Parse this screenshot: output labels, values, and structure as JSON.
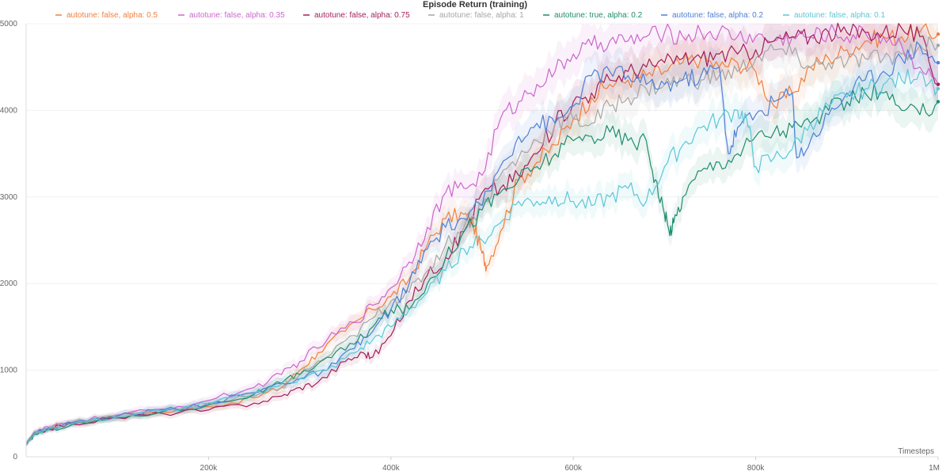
{
  "chart_data": {
    "type": "line",
    "title": "Episode Return (training)",
    "xlabel": "Timesteps",
    "ylabel": "",
    "xlim": [
      0,
      1000000
    ],
    "ylim": [
      0,
      5000
    ],
    "x_ticks": [
      {
        "value": 200000,
        "label": "200k"
      },
      {
        "value": 400000,
        "label": "400k"
      },
      {
        "value": 600000,
        "label": "600k"
      },
      {
        "value": 800000,
        "label": "800k"
      },
      {
        "value": 1000000,
        "label": "1M"
      }
    ],
    "y_ticks": [
      {
        "value": 0,
        "label": "0"
      },
      {
        "value": 1000,
        "label": "1000"
      },
      {
        "value": 2000,
        "label": "2000"
      },
      {
        "value": 3000,
        "label": "3000"
      },
      {
        "value": 4000,
        "label": "4000"
      },
      {
        "value": 5000,
        "label": "5000"
      }
    ],
    "grid": true,
    "legend_position": "top",
    "series": [
      {
        "name": "autotune: false, alpha: 0.5",
        "color": "#f07f3c",
        "x": [
          0,
          10000,
          25000,
          50000,
          100000,
          150000,
          200000,
          250000,
          280000,
          300000,
          320000,
          350000,
          380000,
          400000,
          420000,
          440000,
          460000,
          480000,
          490000,
          500000,
          505000,
          520000,
          540000,
          560000,
          580000,
          600000,
          620000,
          640000,
          660000,
          680000,
          700000,
          720000,
          740000,
          760000,
          780000,
          800000,
          820000,
          840000,
          860000,
          880000,
          900000,
          920000,
          940000,
          960000,
          980000,
          1000000
        ],
        "y": [
          150,
          280,
          330,
          390,
          460,
          520,
          580,
          680,
          800,
          1000,
          1200,
          1450,
          1700,
          1850,
          2050,
          2450,
          2750,
          2800,
          2700,
          2350,
          2200,
          2600,
          3200,
          3400,
          3600,
          3900,
          4150,
          4300,
          4350,
          4400,
          4450,
          4550,
          4600,
          4500,
          4550,
          4450,
          4050,
          4200,
          4500,
          4600,
          4700,
          4800,
          4850,
          4850,
          4900,
          4880
        ]
      },
      {
        "name": "autotune: false, alpha: 0.35",
        "color": "#cc66cc",
        "x": [
          0,
          10000,
          25000,
          50000,
          100000,
          150000,
          200000,
          250000,
          280000,
          300000,
          330000,
          360000,
          380000,
          400000,
          420000,
          440000,
          460000,
          480000,
          500000,
          520000,
          540000,
          560000,
          580000,
          600000,
          620000,
          640000,
          660000,
          680000,
          700000,
          720000,
          740000,
          760000,
          780000,
          800000,
          820000,
          840000,
          860000,
          880000,
          900000,
          920000,
          940000,
          960000,
          980000,
          1000000
        ],
        "y": [
          150,
          290,
          340,
          400,
          480,
          550,
          650,
          800,
          950,
          1100,
          1350,
          1550,
          1750,
          1950,
          2250,
          2650,
          3050,
          3100,
          3250,
          3900,
          4100,
          4300,
          4450,
          4650,
          4750,
          4800,
          4800,
          4850,
          4900,
          4850,
          4900,
          4900,
          4850,
          4850,
          4800,
          4850,
          4850,
          4900,
          4850,
          4900,
          4850,
          4750,
          4500,
          4300
        ]
      },
      {
        "name": "autotune: false, alpha: 0.75",
        "color": "#a31f5a",
        "x": [
          0,
          10000,
          25000,
          50000,
          100000,
          150000,
          200000,
          250000,
          280000,
          300000,
          320000,
          350000,
          370000,
          380000,
          400000,
          420000,
          440000,
          460000,
          480000,
          500000,
          520000,
          540000,
          560000,
          580000,
          600000,
          620000,
          640000,
          660000,
          680000,
          700000,
          720000,
          740000,
          760000,
          780000,
          800000,
          820000,
          840000,
          860000,
          880000,
          900000,
          920000,
          940000,
          960000,
          980000,
          1000000
        ],
        "y": [
          140,
          270,
          320,
          380,
          450,
          500,
          540,
          620,
          700,
          800,
          860,
          1100,
          1200,
          1150,
          1400,
          1800,
          2100,
          2300,
          2600,
          3050,
          3100,
          3250,
          3500,
          3850,
          4100,
          4200,
          4350,
          4450,
          4500,
          4550,
          4600,
          4600,
          4650,
          4650,
          4700,
          4800,
          4850,
          4850,
          4900,
          4900,
          4900,
          4900,
          4950,
          4850,
          4300
        ]
      },
      {
        "name": "autotune: false, alpha: 1",
        "color": "#a6a6a6",
        "x": [
          0,
          10000,
          25000,
          50000,
          100000,
          150000,
          200000,
          250000,
          280000,
          300000,
          330000,
          360000,
          380000,
          400000,
          420000,
          440000,
          460000,
          480000,
          500000,
          520000,
          540000,
          560000,
          580000,
          600000,
          620000,
          640000,
          660000,
          680000,
          700000,
          720000,
          740000,
          760000,
          780000,
          800000,
          820000,
          840000,
          860000,
          880000,
          900000,
          920000,
          940000,
          960000,
          980000,
          1000000
        ],
        "y": [
          150,
          290,
          340,
          400,
          470,
          530,
          600,
          700,
          800,
          950,
          1150,
          1400,
          1600,
          1800,
          1900,
          2150,
          2450,
          2650,
          2900,
          3250,
          3450,
          3650,
          3850,
          3900,
          3850,
          4050,
          4150,
          4250,
          4300,
          4350,
          4350,
          4400,
          4450,
          4600,
          4700,
          4650,
          4500,
          4550,
          4550,
          4600,
          4600,
          4650,
          4750,
          4750
        ]
      },
      {
        "name": "autotune: true, alpha: 0.2",
        "color": "#1f8c6e",
        "x": [
          0,
          10000,
          25000,
          50000,
          100000,
          150000,
          200000,
          250000,
          280000,
          300000,
          330000,
          360000,
          380000,
          400000,
          420000,
          440000,
          460000,
          480000,
          500000,
          520000,
          540000,
          560000,
          580000,
          600000,
          620000,
          640000,
          660000,
          680000,
          690000,
          700000,
          705000,
          710000,
          720000,
          740000,
          760000,
          780000,
          800000,
          820000,
          840000,
          860000,
          880000,
          900000,
          920000,
          940000,
          960000,
          980000,
          1000000
        ],
        "y": [
          140,
          260,
          310,
          370,
          450,
          520,
          600,
          720,
          850,
          950,
          1150,
          1300,
          1500,
          1700,
          1700,
          2000,
          2300,
          2600,
          2850,
          3050,
          3200,
          3350,
          3500,
          3650,
          3700,
          3750,
          3650,
          3650,
          3200,
          2800,
          2600,
          2700,
          3000,
          3300,
          3400,
          3500,
          3700,
          3750,
          3800,
          3850,
          4000,
          4100,
          4200,
          4200,
          4000,
          3950,
          4100
        ]
      },
      {
        "name": "autotune: false, alpha: 0.2",
        "color": "#4d7fd6",
        "x": [
          0,
          10000,
          25000,
          50000,
          100000,
          150000,
          200000,
          250000,
          280000,
          300000,
          330000,
          360000,
          380000,
          400000,
          420000,
          440000,
          460000,
          480000,
          500000,
          520000,
          540000,
          560000,
          580000,
          600000,
          620000,
          640000,
          660000,
          680000,
          700000,
          720000,
          740000,
          760000,
          770000,
          780000,
          800000,
          820000,
          840000,
          845000,
          860000,
          880000,
          900000,
          920000,
          940000,
          960000,
          980000,
          1000000
        ],
        "y": [
          150,
          280,
          330,
          390,
          470,
          540,
          620,
          740,
          850,
          900,
          1000,
          1250,
          1450,
          1700,
          2000,
          2400,
          2650,
          2750,
          2900,
          3350,
          3700,
          3850,
          3850,
          4050,
          4400,
          4450,
          4400,
          4300,
          4300,
          4350,
          4400,
          4500,
          3500,
          3800,
          3950,
          4100,
          4200,
          3450,
          3650,
          3950,
          4200,
          4350,
          4450,
          4600,
          4750,
          4550
        ]
      },
      {
        "name": "autotune: false, alpha: 0.1",
        "color": "#5cc6d6",
        "x": [
          0,
          10000,
          25000,
          50000,
          100000,
          150000,
          200000,
          250000,
          280000,
          300000,
          330000,
          360000,
          380000,
          400000,
          420000,
          440000,
          460000,
          480000,
          500000,
          520000,
          540000,
          560000,
          580000,
          600000,
          620000,
          640000,
          660000,
          680000,
          700000,
          720000,
          740000,
          760000,
          780000,
          790000,
          800000,
          820000,
          840000,
          860000,
          880000,
          900000,
          920000,
          940000,
          960000,
          980000,
          1000000
        ],
        "y": [
          150,
          270,
          320,
          380,
          460,
          530,
          610,
          730,
          840,
          900,
          1000,
          1200,
          1350,
          1500,
          1700,
          1900,
          2150,
          2400,
          2500,
          2700,
          2950,
          2950,
          3000,
          2950,
          2900,
          3000,
          3100,
          2950,
          3350,
          3600,
          3800,
          3900,
          4000,
          3900,
          3350,
          3450,
          3550,
          3850,
          4050,
          4150,
          4250,
          4300,
          4350,
          4450,
          4250
        ]
      }
    ]
  }
}
